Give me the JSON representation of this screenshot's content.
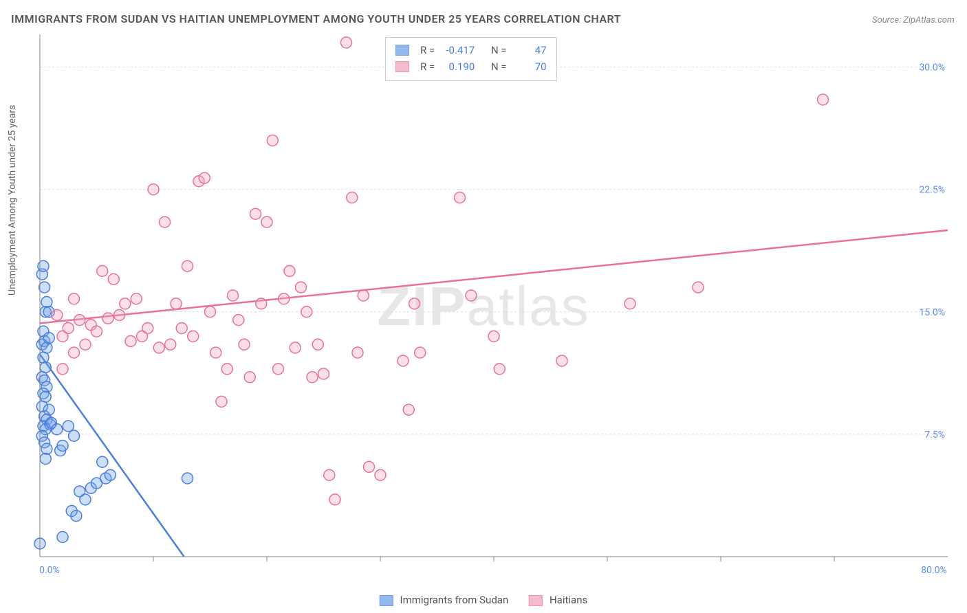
{
  "title": "IMMIGRANTS FROM SUDAN VS HAITIAN UNEMPLOYMENT AMONG YOUTH UNDER 25 YEARS CORRELATION CHART",
  "source": "Source: ZipAtlas.com",
  "ylabel": "Unemployment Among Youth under 25 years",
  "watermark_bold": "ZIP",
  "watermark_light": "atlas",
  "chart": {
    "type": "scatter",
    "xlim": [
      0,
      80
    ],
    "ylim": [
      0,
      32
    ],
    "x_ticks": [
      0,
      80
    ],
    "x_tick_labels": [
      "0.0%",
      "80.0%"
    ],
    "y_ticks": [
      7.5,
      15.0,
      22.5,
      30.0
    ],
    "y_tick_labels": [
      "7.5%",
      "15.0%",
      "22.5%",
      "30.0%"
    ],
    "x_minor_ticks": [
      10,
      20,
      30,
      40,
      50,
      60,
      70
    ],
    "background_color": "#ffffff",
    "grid_color": "#dddddd",
    "axis_color": "#888888",
    "tick_label_color": "#5b8def",
    "marker_radius": 8,
    "marker_stroke_width": 1.5,
    "marker_fill_opacity": 0.35,
    "series": [
      {
        "name": "Immigrants from Sudan",
        "color": "#6fa3e8",
        "stroke": "#4a7de0",
        "R": "-0.417",
        "N": "47",
        "trend": {
          "x1": 0,
          "y1": 12.4,
          "x2": 12.7,
          "y2": 0
        },
        "points": [
          [
            0,
            0.8
          ],
          [
            0.2,
            17.3
          ],
          [
            0.3,
            17.8
          ],
          [
            0.4,
            16.5
          ],
          [
            0.5,
            15.0
          ],
          [
            0.6,
            15.6
          ],
          [
            0.3,
            13.8
          ],
          [
            0.4,
            13.2
          ],
          [
            0.2,
            13.0
          ],
          [
            0.6,
            12.8
          ],
          [
            0.8,
            13.4
          ],
          [
            0.3,
            12.2
          ],
          [
            0.5,
            11.6
          ],
          [
            0.2,
            11.0
          ],
          [
            0.4,
            10.8
          ],
          [
            0.6,
            10.4
          ],
          [
            0.3,
            10.0
          ],
          [
            0.5,
            9.8
          ],
          [
            0.2,
            9.2
          ],
          [
            0.8,
            9.0
          ],
          [
            0.4,
            8.6
          ],
          [
            0.6,
            8.4
          ],
          [
            0.3,
            8.0
          ],
          [
            0.9,
            8.1
          ],
          [
            0.5,
            7.8
          ],
          [
            0.2,
            7.4
          ],
          [
            0.4,
            7.0
          ],
          [
            0.6,
            6.6
          ],
          [
            1.0,
            8.2
          ],
          [
            1.5,
            7.8
          ],
          [
            0.5,
            6.0
          ],
          [
            1.8,
            6.5
          ],
          [
            2.0,
            6.8
          ],
          [
            2.5,
            8.0
          ],
          [
            3.0,
            7.4
          ],
          [
            0.8,
            15.0
          ],
          [
            3.5,
            4.0
          ],
          [
            4.0,
            3.5
          ],
          [
            4.5,
            4.2
          ],
          [
            2.8,
            2.8
          ],
          [
            3.2,
            2.5
          ],
          [
            5.0,
            4.5
          ],
          [
            5.5,
            5.8
          ],
          [
            5.8,
            4.8
          ],
          [
            2.0,
            1.2
          ],
          [
            13.0,
            4.8
          ],
          [
            6.2,
            5.0
          ]
        ]
      },
      {
        "name": "Haitians",
        "color": "#f4a6bd",
        "stroke": "#e87099",
        "R": "0.190",
        "N": "70",
        "trend": {
          "x1": 0,
          "y1": 14.3,
          "x2": 80,
          "y2": 20.0
        },
        "points": [
          [
            1.5,
            14.8
          ],
          [
            2.0,
            13.5
          ],
          [
            2.5,
            14.0
          ],
          [
            3.0,
            12.5
          ],
          [
            3.5,
            14.5
          ],
          [
            4.0,
            13.0
          ],
          [
            4.5,
            14.2
          ],
          [
            5.0,
            13.8
          ],
          [
            2.0,
            11.5
          ],
          [
            5.5,
            17.5
          ],
          [
            6.0,
            14.6
          ],
          [
            6.5,
            17.0
          ],
          [
            7.0,
            14.8
          ],
          [
            7.5,
            15.5
          ],
          [
            8.0,
            13.2
          ],
          [
            8.5,
            15.8
          ],
          [
            9.0,
            13.5
          ],
          [
            9.5,
            14.0
          ],
          [
            10.0,
            22.5
          ],
          [
            10.5,
            12.8
          ],
          [
            11.0,
            20.5
          ],
          [
            11.5,
            13.0
          ],
          [
            12.0,
            15.5
          ],
          [
            12.5,
            14.0
          ],
          [
            13.0,
            17.8
          ],
          [
            13.5,
            13.5
          ],
          [
            14.0,
            23.0
          ],
          [
            14.5,
            23.2
          ],
          [
            15.0,
            15.0
          ],
          [
            15.5,
            12.5
          ],
          [
            16.0,
            9.5
          ],
          [
            16.5,
            11.5
          ],
          [
            17.0,
            16.0
          ],
          [
            17.5,
            14.5
          ],
          [
            18.0,
            13.0
          ],
          [
            18.5,
            11.0
          ],
          [
            19.0,
            21.0
          ],
          [
            19.5,
            15.5
          ],
          [
            20.0,
            20.5
          ],
          [
            20.5,
            25.5
          ],
          [
            21.0,
            11.5
          ],
          [
            21.5,
            15.8
          ],
          [
            22.0,
            17.5
          ],
          [
            22.5,
            12.8
          ],
          [
            23.0,
            16.5
          ],
          [
            23.5,
            15.0
          ],
          [
            24.0,
            11.0
          ],
          [
            24.5,
            13.0
          ],
          [
            25.0,
            11.2
          ],
          [
            25.5,
            5.0
          ],
          [
            27.0,
            31.5
          ],
          [
            27.5,
            22.0
          ],
          [
            26.0,
            3.5
          ],
          [
            28.0,
            12.5
          ],
          [
            28.5,
            16.0
          ],
          [
            29.0,
            5.5
          ],
          [
            30.0,
            5.0
          ],
          [
            32.0,
            12.0
          ],
          [
            32.5,
            9.0
          ],
          [
            33.0,
            15.5
          ],
          [
            33.5,
            12.5
          ],
          [
            37.0,
            22.0
          ],
          [
            40.0,
            13.5
          ],
          [
            40.5,
            11.5
          ],
          [
            46.0,
            12.0
          ],
          [
            52.0,
            15.5
          ],
          [
            58.0,
            16.5
          ],
          [
            69.0,
            28.0
          ],
          [
            38.0,
            16.0
          ],
          [
            3.0,
            15.8
          ]
        ]
      }
    ]
  },
  "stats_legend": {
    "r_label": "R =",
    "n_label": "N ="
  },
  "bottom_legend": {
    "series1_label": "Immigrants from Sudan",
    "series2_label": "Haitians"
  }
}
